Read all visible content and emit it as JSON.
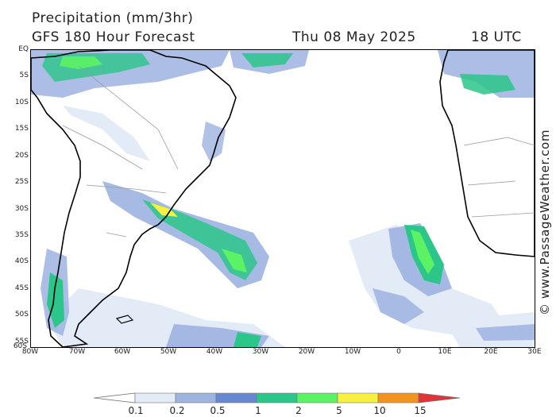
{
  "header": {
    "title": "Precipitation (mm/3hr)",
    "subtitle": "GFS 180 Hour Forecast",
    "date": "Thu 08 May 2025",
    "time": "18 UTC"
  },
  "map": {
    "latitude_labels": [
      "EQ",
      "5S",
      "10S",
      "15S",
      "20S",
      "25S",
      "30S",
      "35S",
      "40S",
      "45S",
      "50S",
      "55S",
      "60S"
    ],
    "longitude_labels": [
      "80W",
      "70W",
      "60W",
      "50W",
      "40W",
      "30W",
      "20W",
      "10W",
      "0",
      "10E",
      "20E",
      "30E"
    ],
    "colors": {
      "land": "#ffffff",
      "ocean": "#ffffff",
      "coastline": "#000000",
      "borders": "#9a9a9a"
    }
  },
  "watermark": "© www.PassageWeather.com",
  "legend": {
    "labels": [
      "0.1",
      "0.2",
      "0.5",
      "1",
      "2",
      "5",
      "10",
      "15"
    ],
    "colors": [
      "#ffffff",
      "#e3ebf7",
      "#9db3e0",
      "#6787d2",
      "#2cc58a",
      "#5cf265",
      "#f7f03f",
      "#f2921f",
      "#e13438"
    ]
  }
}
